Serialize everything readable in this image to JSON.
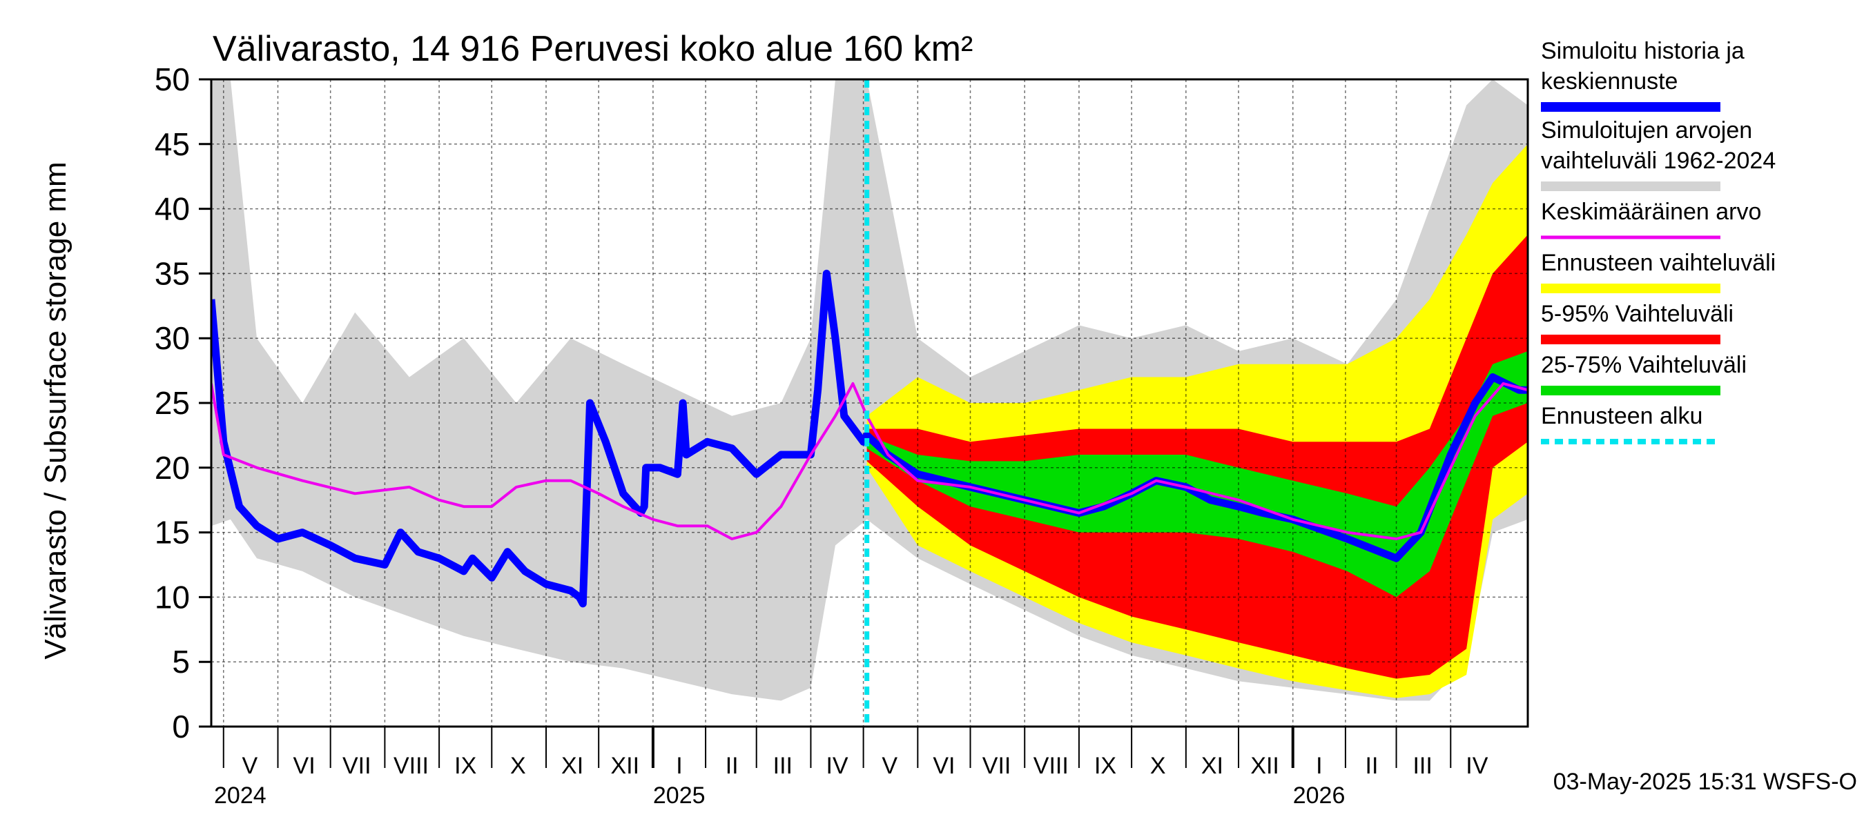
{
  "chart_data": {
    "type": "area",
    "title": "Välivarasto, 14 916 Peruvesi koko alue 160 km²",
    "ylabel": "Välivarasto / Subsurface storage  mm",
    "xlabel": "",
    "ylim": [
      0,
      50
    ],
    "yticks": [
      0,
      5,
      10,
      15,
      20,
      25,
      30,
      35,
      40,
      45,
      50
    ],
    "x_range": [
      "2024-04-24",
      "2026-05-15"
    ],
    "grid": true,
    "legend_placement": "right",
    "months": [
      {
        "label": "V",
        "center": "2024-05-16"
      },
      {
        "label": "VI",
        "center": "2024-06-16"
      },
      {
        "label": "VII",
        "center": "2024-07-16"
      },
      {
        "label": "VIII",
        "center": "2024-08-16"
      },
      {
        "label": "IX",
        "center": "2024-09-16"
      },
      {
        "label": "X",
        "center": "2024-10-16"
      },
      {
        "label": "XI",
        "center": "2024-11-16"
      },
      {
        "label": "XII",
        "center": "2024-12-16"
      },
      {
        "label": "I",
        "center": "2025-01-16"
      },
      {
        "label": "II",
        "center": "2025-02-15"
      },
      {
        "label": "III",
        "center": "2025-03-16"
      },
      {
        "label": "IV",
        "center": "2025-04-16"
      },
      {
        "label": "V",
        "center": "2025-05-16"
      },
      {
        "label": "VI",
        "center": "2025-06-16"
      },
      {
        "label": "VII",
        "center": "2025-07-16"
      },
      {
        "label": "VIII",
        "center": "2025-08-16"
      },
      {
        "label": "IX",
        "center": "2025-09-16"
      },
      {
        "label": "X",
        "center": "2025-10-16"
      },
      {
        "label": "XI",
        "center": "2025-11-16"
      },
      {
        "label": "XII",
        "center": "2025-12-16"
      },
      {
        "label": "I",
        "center": "2026-01-16"
      },
      {
        "label": "II",
        "center": "2026-02-15"
      },
      {
        "label": "III",
        "center": "2026-03-16"
      },
      {
        "label": "IV",
        "center": "2026-04-16"
      }
    ],
    "year_labels": [
      {
        "label": "2024",
        "date": "2024-05-01"
      },
      {
        "label": "2025",
        "date": "2025-01-01"
      },
      {
        "label": "2026",
        "date": "2026-01-01"
      }
    ],
    "forecast_start": "2025-05-03",
    "series": [
      {
        "name": "Simuloitujen arvojen vaihteluväli 1962-2024",
        "color": "#d3d3d3",
        "kind": "band",
        "x": [
          "2024-04-24",
          "2024-05-05",
          "2024-05-20",
          "2024-06-15",
          "2024-07-15",
          "2024-08-15",
          "2024-09-15",
          "2024-10-15",
          "2024-11-15",
          "2024-12-15",
          "2025-01-15",
          "2025-02-15",
          "2025-03-15",
          "2025-04-01",
          "2025-04-15",
          "2025-05-03",
          "2025-06-01",
          "2025-07-01",
          "2025-08-01",
          "2025-09-01",
          "2025-10-01",
          "2025-11-01",
          "2025-12-01",
          "2026-01-01",
          "2026-02-01",
          "2026-03-01",
          "2026-03-20",
          "2026-04-10",
          "2026-04-25",
          "2026-05-15"
        ],
        "low": [
          15.5,
          16,
          13,
          12,
          10,
          8.5,
          7,
          6,
          5,
          4.5,
          3.5,
          2.5,
          2,
          3,
          14,
          16,
          13,
          11,
          9,
          7,
          5.5,
          4.5,
          3.5,
          3,
          2.5,
          2,
          2,
          5,
          15,
          16
        ],
        "high": [
          50,
          50,
          30,
          25,
          32,
          27,
          30,
          25,
          30,
          28,
          26,
          24,
          25,
          30,
          50,
          50,
          30,
          27,
          29,
          31,
          30,
          31,
          29,
          30,
          28,
          33,
          40,
          48,
          50,
          48
        ]
      },
      {
        "name": "Ennusteen vaihteluväli",
        "color": "#ffff00",
        "kind": "band",
        "x": [
          "2025-05-03",
          "2025-06-01",
          "2025-07-01",
          "2025-08-01",
          "2025-09-01",
          "2025-10-01",
          "2025-11-01",
          "2025-12-01",
          "2026-01-01",
          "2026-02-01",
          "2026-03-01",
          "2026-03-20",
          "2026-04-10",
          "2026-04-25",
          "2026-05-15"
        ],
        "low": [
          20,
          14,
          12,
          10,
          8,
          6.5,
          5.5,
          4.5,
          3.5,
          2.8,
          2.2,
          2.5,
          4,
          16,
          18
        ],
        "high": [
          24,
          27,
          25,
          25,
          26,
          27,
          27,
          28,
          28,
          28,
          30,
          33,
          38,
          42,
          45
        ]
      },
      {
        "name": "5-95% Vaihteluväli",
        "color": "#ff0000",
        "kind": "band",
        "x": [
          "2025-05-03",
          "2025-06-01",
          "2025-07-01",
          "2025-08-01",
          "2025-09-01",
          "2025-10-01",
          "2025-11-01",
          "2025-12-01",
          "2026-01-01",
          "2026-02-01",
          "2026-03-01",
          "2026-03-20",
          "2026-04-10",
          "2026-04-25",
          "2026-05-15"
        ],
        "low": [
          20.5,
          17,
          14,
          12,
          10,
          8.5,
          7.5,
          6.5,
          5.5,
          4.5,
          3.7,
          4,
          6,
          20,
          22
        ],
        "high": [
          23,
          23,
          22,
          22.5,
          23,
          23,
          23,
          23,
          22,
          22,
          22,
          23,
          30,
          35,
          38
        ]
      },
      {
        "name": "25-75% Vaihteluväli",
        "color": "#00dd00",
        "kind": "band",
        "x": [
          "2025-05-03",
          "2025-06-01",
          "2025-07-01",
          "2025-08-01",
          "2025-09-01",
          "2025-10-01",
          "2025-11-01",
          "2025-12-01",
          "2026-01-01",
          "2026-02-01",
          "2026-03-01",
          "2026-03-20",
          "2026-04-10",
          "2026-04-25",
          "2026-05-15"
        ],
        "low": [
          21.5,
          19,
          17,
          16,
          15,
          15,
          15,
          14.5,
          13.5,
          12,
          10,
          12,
          19,
          24,
          25
        ],
        "high": [
          22.5,
          21,
          20.5,
          20.5,
          21,
          21,
          21,
          20,
          19,
          18,
          17,
          20,
          24,
          28,
          29
        ]
      },
      {
        "name": "Simuloitu historia ja keskiennuste",
        "color": "#0000ff",
        "kind": "line",
        "x": [
          "2024-04-24",
          "2024-05-01",
          "2024-05-10",
          "2024-05-20",
          "2024-06-01",
          "2024-06-15",
          "2024-07-01",
          "2024-07-15",
          "2024-08-01",
          "2024-08-10",
          "2024-08-20",
          "2024-09-01",
          "2024-09-15",
          "2024-09-20",
          "2024-10-01",
          "2024-10-10",
          "2024-10-20",
          "2024-11-01",
          "2024-11-15",
          "2024-11-20",
          "2024-11-22",
          "2024-11-26",
          "2024-12-05",
          "2024-12-15",
          "2024-12-25",
          "2024-12-27",
          "2024-12-28",
          "2025-01-05",
          "2025-01-15",
          "2025-01-18",
          "2025-01-20",
          "2025-02-01",
          "2025-02-15",
          "2025-03-01",
          "2025-03-15",
          "2025-04-01",
          "2025-04-05",
          "2025-04-10",
          "2025-04-15",
          "2025-04-20",
          "2025-05-01",
          "2025-05-03",
          "2025-05-15",
          "2025-06-01",
          "2025-07-01",
          "2025-08-01",
          "2025-09-01",
          "2025-09-15",
          "2025-10-01",
          "2025-10-15",
          "2025-11-01",
          "2025-11-15",
          "2025-12-01",
          "2025-12-15",
          "2026-01-01",
          "2026-02-01",
          "2026-03-01",
          "2026-03-15",
          "2026-04-01",
          "2026-04-15",
          "2026-04-25",
          "2026-05-10",
          "2026-05-15"
        ],
        "y": [
          33,
          22,
          17,
          15.5,
          14.5,
          15,
          14,
          13,
          12.5,
          15,
          13.5,
          13,
          12,
          13,
          11.5,
          13.5,
          12,
          11,
          10.5,
          10,
          9.5,
          25,
          22,
          18,
          16.5,
          17,
          20,
          20,
          19.5,
          25,
          21,
          22,
          21.5,
          19.5,
          21,
          21,
          26,
          35,
          30,
          24,
          22,
          22.5,
          21,
          19.5,
          18.5,
          17.5,
          16.5,
          17,
          18,
          19,
          18.5,
          17.5,
          17,
          16.5,
          16,
          14.5,
          13,
          15,
          21,
          25,
          27,
          26,
          26
        ]
      },
      {
        "name": "Keskimääräinen arvo",
        "color": "#ee00ee",
        "kind": "line",
        "x": [
          "2024-04-24",
          "2024-05-01",
          "2024-05-20",
          "2024-06-15",
          "2024-07-15",
          "2024-08-15",
          "2024-09-01",
          "2024-09-15",
          "2024-10-01",
          "2024-10-15",
          "2024-11-01",
          "2024-11-15",
          "2024-12-01",
          "2024-12-15",
          "2025-01-01",
          "2025-01-15",
          "2025-02-01",
          "2025-02-15",
          "2025-03-01",
          "2025-03-15",
          "2025-04-01",
          "2025-04-15",
          "2025-04-25",
          "2025-05-03",
          "2025-05-15",
          "2025-06-01",
          "2025-07-01",
          "2025-08-01",
          "2025-09-01",
          "2025-10-01",
          "2025-10-15",
          "2025-11-01",
          "2025-12-01",
          "2026-01-01",
          "2026-02-01",
          "2026-03-01",
          "2026-03-15",
          "2026-04-01",
          "2026-04-15",
          "2026-05-01",
          "2026-05-15"
        ],
        "y": [
          26.5,
          21,
          20,
          19,
          18,
          18.5,
          17.5,
          17,
          17,
          18.5,
          19,
          19,
          18,
          17,
          16,
          15.5,
          15.5,
          14.5,
          15,
          17,
          21,
          24,
          26.5,
          24,
          21,
          19,
          18.5,
          17.5,
          16.5,
          18,
          19,
          18.5,
          17.5,
          16,
          15,
          14.5,
          15,
          20,
          24,
          26.5,
          26
        ]
      }
    ],
    "legend": [
      {
        "label": "Simuloitu historia ja keskiennuste",
        "color": "#0000ff"
      },
      {
        "label": "Simuloitujen arvojen vaihteluväli 1962-2024",
        "color": "#d3d3d3"
      },
      {
        "label": "Keskimääräinen arvo",
        "color": "#ee00ee"
      },
      {
        "label": "Ennusteen vaihteluväli",
        "color": "#ffff00"
      },
      {
        "label": "5-95% Vaihteluväli",
        "color": "#ff0000"
      },
      {
        "label": "25-75% Vaihteluväli",
        "color": "#00dd00"
      },
      {
        "label": "Ennusteen alku",
        "color": "#00e5ee",
        "dashed": true
      }
    ],
    "timestamp": "03-May-2025 15:31 WSFS-O"
  }
}
